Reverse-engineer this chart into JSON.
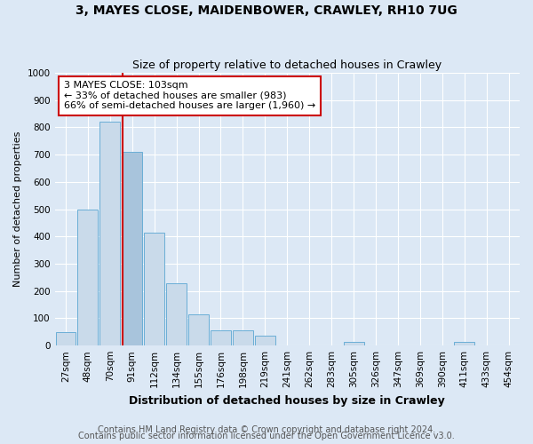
{
  "title1": "3, MAYES CLOSE, MAIDENBOWER, CRAWLEY, RH10 7UG",
  "title2": "Size of property relative to detached houses in Crawley",
  "xlabel": "Distribution of detached houses by size in Crawley",
  "ylabel": "Number of detached properties",
  "bin_labels": [
    "27sqm",
    "48sqm",
    "70sqm",
    "91sqm",
    "112sqm",
    "134sqm",
    "155sqm",
    "176sqm",
    "198sqm",
    "219sqm",
    "241sqm",
    "262sqm",
    "283sqm",
    "305sqm",
    "326sqm",
    "347sqm",
    "369sqm",
    "390sqm",
    "411sqm",
    "433sqm",
    "454sqm"
  ],
  "bar_heights": [
    50,
    500,
    820,
    710,
    415,
    230,
    115,
    55,
    55,
    35,
    0,
    0,
    0,
    15,
    0,
    0,
    0,
    0,
    15,
    0,
    0
  ],
  "bar_color": "#c9daea",
  "bar_edge_color": "#6aaed6",
  "highlight_bar_index": 3,
  "highlight_bar_color": "#a8c4dc",
  "vline_x": 2.55,
  "vline_color": "#cc0000",
  "background_color": "#dce8f5",
  "grid_color": "#ffffff",
  "annotation_text": "3 MAYES CLOSE: 103sqm\n← 33% of detached houses are smaller (983)\n66% of semi-detached houses are larger (1,960) →",
  "annotation_box_facecolor": "#ffffff",
  "annotation_box_edge": "#cc0000",
  "footer1": "Contains HM Land Registry data © Crown copyright and database right 2024.",
  "footer2": "Contains public sector information licensed under the Open Government Licence v3.0.",
  "ylim": [
    0,
    1000
  ],
  "yticks": [
    0,
    100,
    200,
    300,
    400,
    500,
    600,
    700,
    800,
    900,
    1000
  ],
  "title1_fontsize": 10,
  "title2_fontsize": 9,
  "xlabel_fontsize": 9,
  "ylabel_fontsize": 8,
  "tick_fontsize": 7.5,
  "footer_fontsize": 7,
  "ann_fontsize": 8
}
